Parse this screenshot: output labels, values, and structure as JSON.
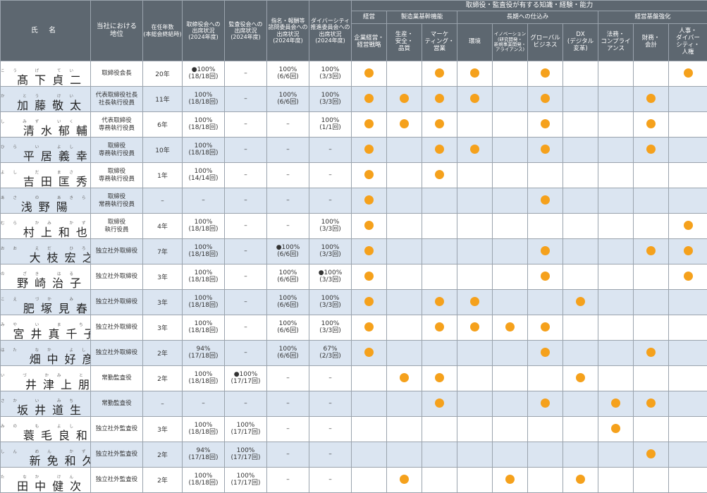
{
  "header": {
    "name": "氏 名",
    "position": "当社における\n地位",
    "tenure": "在任年数\n(本総会終結時)",
    "board_att": "取締役会への\n出席状況\n(2024年度)",
    "audit_att": "監査役会への\n出席状況\n(2024年度)",
    "nom_att": "指名・報酬等\n諮問委員会への\n出席状況\n(2024年度)",
    "div_att": "ダイバーシティ\n推進委員会への\n出席状況\n(2024年度)",
    "skills_title": "取締役・監査役が有する知識・経験・能力",
    "groups": [
      "経営",
      "製造業基幹機能",
      "長期への仕込み",
      "経営基盤強化"
    ],
    "skills": [
      "企業経営・\n経営戦略",
      "生産・\n安全・\n品質",
      "マーケ\nティング・\n営業",
      "環境",
      "イノベーション\n(研究開発・\n新規事業開発・\nアライアンス)",
      "グローバル\nビジネス",
      "DX\n(デジタル\n変革)",
      "法務・\nコンプライ\nアンス",
      "財務・\n会計",
      "人事・\nダイバー\nシティ・\n人権"
    ]
  },
  "accent_color": "#f5a11c",
  "rows": [
    {
      "furigana": "こう げ てい じ",
      "name": "髙下貞二",
      "position": "取締役会長",
      "tenure": "20年",
      "board": "●100%\n(18/18回)",
      "audit": "–",
      "nom": "100%\n(6/6回)",
      "div": "100%\n(3/3回)",
      "skills": [
        1,
        0,
        1,
        1,
        0,
        1,
        0,
        0,
        0,
        1
      ]
    },
    {
      "furigana": "か とう けい た",
      "name": "加藤敬太",
      "position": "代表取締役社長\n社長執行役員",
      "tenure": "11年",
      "board": "100%\n(18/18回)",
      "audit": "–",
      "nom": "100%\n(6/6回)",
      "div": "100%\n(3/3回)",
      "skills": [
        1,
        1,
        1,
        1,
        0,
        1,
        0,
        0,
        1,
        0
      ]
    },
    {
      "furigana": "し みず いく すけ",
      "name": "清水郁輔",
      "position": "代表取締役\n専務執行役員",
      "tenure": "6年",
      "board": "100%\n(18/18回)",
      "audit": "–",
      "nom": "–",
      "div": "100%\n(1/1回)",
      "skills": [
        1,
        1,
        1,
        0,
        0,
        1,
        0,
        0,
        1,
        0
      ]
    },
    {
      "furigana": "ひら い よし ゆき",
      "name": "平居義幸",
      "position": "取締役\n専務執行役員",
      "tenure": "10年",
      "board": "100%\n(18/18回)",
      "audit": "–",
      "nom": "–",
      "div": "–",
      "skills": [
        1,
        0,
        1,
        1,
        0,
        1,
        0,
        0,
        1,
        0
      ]
    },
    {
      "furigana": "よし だ まさ ひで",
      "name": "吉田匡秀",
      "position": "取締役\n専務執行役員",
      "tenure": "1年",
      "board": "100%\n(14/14回)",
      "audit": "–",
      "nom": "–",
      "div": "–",
      "skills": [
        1,
        0,
        1,
        0,
        0,
        0,
        0,
        0,
        0,
        0
      ]
    },
    {
      "furigana": "あさ の あきら",
      "name": "浅野陽",
      "position": "取締役\n常務執行役員",
      "tenure": "–",
      "board": "–",
      "audit": "–",
      "nom": "–",
      "div": "–",
      "skills": [
        1,
        0,
        0,
        0,
        0,
        1,
        0,
        0,
        0,
        0
      ]
    },
    {
      "furigana": "むら かみ かず や",
      "name": "村上和也",
      "position": "取締役\n執行役員",
      "tenure": "4年",
      "board": "100%\n(18/18回)",
      "audit": "–",
      "nom": "–",
      "div": "100%\n(3/3回)",
      "skills": [
        1,
        0,
        0,
        0,
        0,
        0,
        0,
        0,
        0,
        1
      ]
    },
    {
      "furigana": "おお えだ ひろ ゆき",
      "name": "大枝宏之",
      "position": "独立社外取締役",
      "tenure": "7年",
      "board": "100%\n(18/18回)",
      "audit": "–",
      "nom": "●100%\n(6/6回)",
      "div": "100%\n(3/3回)",
      "skills": [
        1,
        0,
        0,
        0,
        0,
        1,
        0,
        0,
        1,
        1
      ]
    },
    {
      "furigana": "の ざき はる こ",
      "name": "野崎治子",
      "position": "独立社外取締役",
      "tenure": "3年",
      "board": "100%\n(18/18回)",
      "audit": "–",
      "nom": "100%\n(6/6回)",
      "div": "●100%\n(3/3回)",
      "skills": [
        1,
        0,
        0,
        0,
        0,
        1,
        0,
        0,
        0,
        1
      ]
    },
    {
      "furigana": "こえ づか み はる",
      "name": "肥塚見春",
      "position": "独立社外取締役",
      "tenure": "3年",
      "board": "100%\n(18/18回)",
      "audit": "–",
      "nom": "100%\n(6/6回)",
      "div": "100%\n(3/3回)",
      "skills": [
        1,
        0,
        1,
        1,
        0,
        0,
        1,
        0,
        0,
        0
      ]
    },
    {
      "furigana": "みや い ま ち こ",
      "name": "宮井真千子",
      "position": "独立社外取締役",
      "tenure": "3年",
      "board": "100%\n(18/18回)",
      "audit": "–",
      "nom": "100%\n(6/6回)",
      "div": "100%\n(3/3回)",
      "skills": [
        1,
        0,
        1,
        1,
        1,
        1,
        0,
        0,
        0,
        0
      ]
    },
    {
      "furigana": "はた なか よし ひこ",
      "name": "畑中好彦",
      "position": "独立社外取締役",
      "tenure": "2年",
      "board": "94%\n(17/18回)",
      "audit": "–",
      "nom": "100%\n(6/6回)",
      "div": "67%\n(2/3回)",
      "skills": [
        1,
        0,
        0,
        0,
        0,
        1,
        0,
        0,
        1,
        0
      ]
    },
    {
      "furigana": "い づ かみ とも やす",
      "name": "井津上朋保",
      "position": "常勤監査役",
      "tenure": "2年",
      "board": "100%\n(18/18回)",
      "audit": "●100%\n(17/17回)",
      "nom": "–",
      "div": "–",
      "skills": [
        0,
        1,
        1,
        0,
        0,
        0,
        1,
        0,
        0,
        0
      ]
    },
    {
      "furigana": "さか い みち お",
      "name": "坂井道生",
      "position": "常勤監査役",
      "tenure": "–",
      "board": "–",
      "audit": "–",
      "nom": "–",
      "div": "–",
      "skills": [
        0,
        0,
        1,
        0,
        0,
        1,
        0,
        1,
        1,
        0
      ]
    },
    {
      "furigana": "みの も よし かず",
      "name": "蓑毛良和",
      "position": "独立社外監査役",
      "tenure": "3年",
      "board": "100%\n(18/18回)",
      "audit": "100%\n(17/17回)",
      "nom": "–",
      "div": "–",
      "skills": [
        0,
        0,
        0,
        0,
        0,
        0,
        0,
        1,
        0,
        0
      ]
    },
    {
      "furigana": "しん めん かず ひさ",
      "name": "新免和久",
      "position": "独立社外監査役",
      "tenure": "2年",
      "board": "94%\n(17/18回)",
      "audit": "100%\n(17/17回)",
      "nom": "–",
      "div": "–",
      "skills": [
        0,
        0,
        0,
        0,
        0,
        0,
        0,
        0,
        1,
        0
      ]
    },
    {
      "furigana": "た なか けん じ",
      "name": "田中健次",
      "position": "独立社外監査役",
      "tenure": "2年",
      "board": "100%\n(18/18回)",
      "audit": "100%\n(17/17回)",
      "nom": "–",
      "div": "–",
      "skills": [
        0,
        1,
        0,
        0,
        1,
        0,
        1,
        0,
        0,
        0
      ]
    }
  ]
}
